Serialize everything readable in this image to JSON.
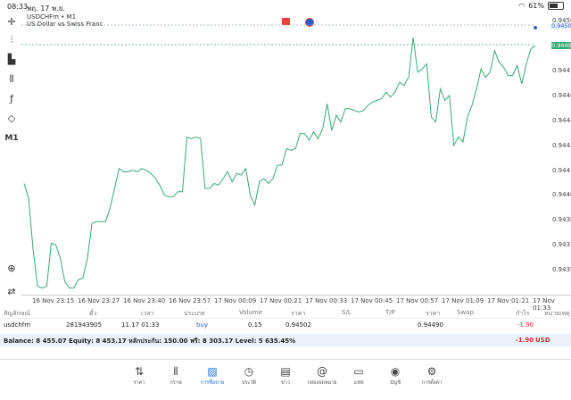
{
  "status": {
    "time": "08:33",
    "date": "พฤ. 17 พ.ย.",
    "battery": "61%"
  },
  "chart": {
    "symbol_title": "USDCHFm • M1",
    "symbol_sub": "US Dollar vs Swiss Franc",
    "icons": [
      "crosshair-icon",
      "candles-icon",
      "bars-icon",
      "sliders-icon",
      "function-icon",
      "shapes-icon"
    ],
    "timeframe": "M1",
    "y_ticks": [
      "0.94505",
      "0.94502",
      "0.94490",
      "0.94475",
      "0.94460",
      "0.94445",
      "0.94430",
      "0.94415",
      "0.94400",
      "0.94385",
      "0.94370",
      "0.94355"
    ],
    "ask_tag": "0.94502",
    "bid_tag": "0.94490",
    "x_ticks": [
      "16 Nov 23:15",
      "16 Nov 23:27",
      "16 Nov 23:40",
      "16 Nov 23:57",
      "17 Nov 00:09",
      "17 Nov 00:21",
      "17 Nov 00:33",
      "17 Nov 00:45",
      "17 Nov 00:57",
      "17 Nov 01:09",
      "17 Nov 01:21",
      "17 Nov 01:33"
    ],
    "line_color": "#3aa876"
  },
  "chart_data": {
    "type": "line",
    "title": "USDCHFm • M1",
    "series": [
      {
        "name": "USDCHFm",
        "values": [
          0.94407,
          0.94398,
          0.94367,
          0.94345,
          0.94344,
          0.94345,
          0.94371,
          0.9437,
          0.94362,
          0.94348,
          0.94344,
          0.94344,
          0.94349,
          0.9435,
          0.94362,
          0.94383,
          0.94384,
          0.94384,
          0.94384,
          0.94392,
          0.94404,
          0.94416,
          0.94414,
          0.94414,
          0.94415,
          0.94414,
          0.94416,
          0.94415,
          0.94413,
          0.9441,
          0.94406,
          0.944,
          0.94399,
          0.94399,
          0.94402,
          0.94402,
          0.94435,
          0.94434,
          0.94435,
          0.94434,
          0.94404,
          0.94404,
          0.94407,
          0.94406,
          0.9441,
          0.94414,
          0.94408,
          0.94413,
          0.94412,
          0.94416,
          0.944,
          0.94394,
          0.94408,
          0.9441,
          0.94407,
          0.9441,
          0.94418,
          0.94418,
          0.94428,
          0.94427,
          0.94428,
          0.94437,
          0.94437,
          0.94433,
          0.94438,
          0.94434,
          0.9444,
          0.94455,
          0.94439,
          0.94448,
          0.94444,
          0.94452,
          0.94452,
          0.94451,
          0.9445,
          0.94451,
          0.94454,
          0.94456,
          0.94457,
          0.94458,
          0.94462,
          0.94459,
          0.94462,
          0.94468,
          0.94466,
          0.94471,
          0.94495,
          0.94474,
          0.94476,
          0.94479,
          0.94447,
          0.94444,
          0.94464,
          0.94457,
          0.9446,
          0.9443,
          0.94435,
          0.94432,
          0.94447,
          0.94454,
          0.94464,
          0.94476,
          0.94471,
          0.94474,
          0.94487,
          0.9448,
          0.94477,
          0.94472,
          0.94472,
          0.94478,
          0.94467,
          0.94479,
          0.94488,
          0.9449
        ]
      }
    ],
    "ylim": [
      0.9434,
      0.9451
    ],
    "x_ticks": [
      "16 Nov 23:15",
      "16 Nov 23:27",
      "16 Nov 23:40",
      "16 Nov 23:57",
      "17 Nov 00:09",
      "17 Nov 00:21",
      "17 Nov 00:33",
      "17 Nov 00:45",
      "17 Nov 00:57",
      "17 Nov 01:09",
      "17 Nov 01:21",
      "17 Nov 01:33"
    ],
    "ask": 0.94502,
    "bid": 0.9449
  },
  "table": {
    "headers": [
      "สัญลักษณ์",
      "ตั๋ว",
      "เวลา",
      "ประเภท",
      "Volume",
      "ราคา",
      "S/L",
      "T/P",
      "ราคา",
      "Swap",
      "กำไร",
      "หมายเหตุ"
    ],
    "row": [
      "usdchfm",
      "281943905",
      "11.17 01:33",
      "buy",
      "0.15",
      "0.94502",
      "",
      "",
      "0.94490",
      "",
      "-1.90",
      ""
    ]
  },
  "balance": {
    "text": "Balance: 8 455.07 Equity: 8 453.17 หลักประกัน: 150.00 ฟรี: 8 303.17 Level: 5 635.45%",
    "profit": "-1.90",
    "currency": "USD"
  },
  "nav": [
    {
      "label": "ราคา",
      "icon": "quotes-icon",
      "glyph": "⇅"
    },
    {
      "label": "กราฟ",
      "icon": "chart-icon",
      "glyph": "⫴"
    },
    {
      "label": "การซื้อขาย",
      "icon": "trade-icon",
      "glyph": "▨"
    },
    {
      "label": "ประวัติ",
      "icon": "history-icon",
      "glyph": "◷"
    },
    {
      "label": "ข่าว",
      "icon": "news-icon",
      "glyph": "▤"
    },
    {
      "label": "กล่องจดหมาย",
      "icon": "mail-icon",
      "glyph": "@"
    },
    {
      "label": "แชท",
      "icon": "chat-icon",
      "glyph": "▭"
    },
    {
      "label": "บัญชี",
      "icon": "account-icon",
      "glyph": "◉"
    },
    {
      "label": "การตั้งค่า",
      "icon": "settings-icon",
      "glyph": "⚙"
    }
  ]
}
